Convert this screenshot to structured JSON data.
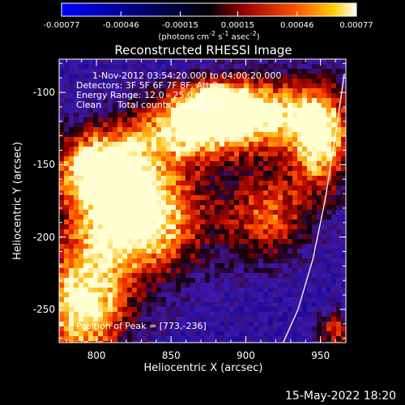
{
  "chart_data": {
    "type": "heatmap",
    "title": "Reconstructed RHESSI Image",
    "xlabel": "Heliocentric X (arcsec)",
    "ylabel": "Heliocentric Y (arcsec)",
    "xlim": [
      775,
      967
    ],
    "ylim": [
      -273,
      -77
    ],
    "xticks": [
      800,
      850,
      900,
      950
    ],
    "yticks": [
      -100,
      -150,
      -200,
      -250
    ],
    "colorbar": {
      "ticks": [
        "-0.00077",
        "-0.00046",
        "-0.00015",
        "0.00015",
        "0.00046",
        "0.00077"
      ],
      "range": [
        -0.00077,
        0.00077
      ],
      "unit_parts": [
        "(photons cm",
        "-2",
        " s",
        "-1",
        " asec",
        "-2",
        ")"
      ]
    },
    "annotations": {
      "time": "1-Nov-2012 03:54:20.000 to 04:00:20.000",
      "detectors": "Detectors: 3F 5F 6F 7F 8F, Att 0",
      "energy": "Energy Range: 12.0 - 25.0 keV",
      "method": "Clean",
      "counts": "Total counts: 5.34E+03",
      "peak": "Position of Peak = [773,-236]"
    },
    "limb_curve": [
      [
        925,
        -273
      ],
      [
        935,
        -250
      ],
      [
        945,
        -215
      ],
      [
        953,
        -175
      ],
      [
        960,
        -130
      ],
      [
        966,
        -87
      ]
    ],
    "emission_regions": [
      {
        "x": 827,
        "y": -185,
        "sx": 32,
        "sy": 30,
        "amp": 1.05
      },
      {
        "x": 790,
        "y": -250,
        "sx": 22,
        "sy": 30,
        "amp": 0.9
      },
      {
        "x": 800,
        "y": -150,
        "sx": 22,
        "sy": 18,
        "amp": 0.75
      },
      {
        "x": 862,
        "y": -125,
        "sx": 28,
        "sy": 16,
        "amp": 0.7
      },
      {
        "x": 910,
        "y": -115,
        "sx": 34,
        "sy": 18,
        "amp": 0.8
      },
      {
        "x": 950,
        "y": -135,
        "sx": 14,
        "sy": 26,
        "amp": 0.8
      },
      {
        "x": 915,
        "y": -185,
        "sx": 20,
        "sy": 22,
        "amp": 0.6
      },
      {
        "x": 880,
        "y": -105,
        "sx": 18,
        "sy": 10,
        "amp": 0.55
      },
      {
        "x": 960,
        "y": -265,
        "sx": 8,
        "sy": 10,
        "amp": 0.55
      }
    ]
  },
  "footer": {
    "date": "15-May-2022 18:20"
  }
}
